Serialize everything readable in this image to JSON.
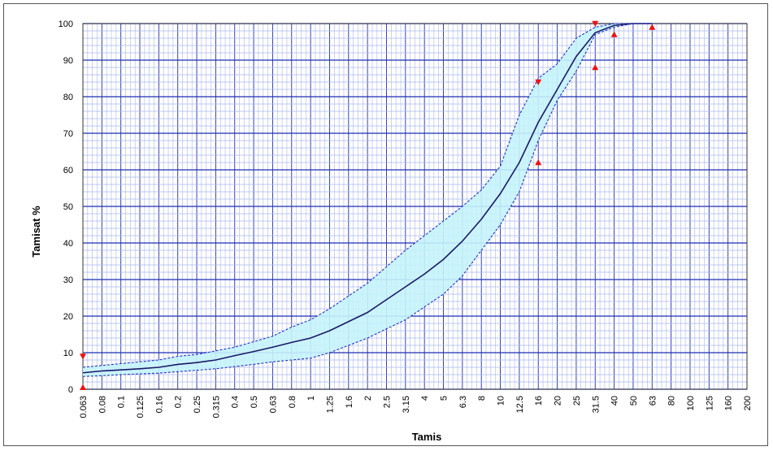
{
  "chart_data": {
    "type": "line",
    "title": "",
    "xlabel": "Tamis",
    "ylabel": "Tamisat %",
    "categories": [
      "0.063",
      "0.08",
      "0.1",
      "0.125",
      "0.16",
      "0.2",
      "0.25",
      "0.315",
      "0.4",
      "0.5",
      "0.63",
      "0.8",
      "1",
      "1.25",
      "1.6",
      "2",
      "2.5",
      "3.15",
      "4",
      "5",
      "6.3",
      "8",
      "10",
      "12.5",
      "16",
      "20",
      "25",
      "31.5",
      "40",
      "50",
      "63",
      "80",
      "100",
      "125",
      "160",
      "200"
    ],
    "ylim": [
      0,
      100
    ],
    "y_ticks": [
      0,
      10,
      20,
      30,
      40,
      50,
      60,
      70,
      80,
      90,
      100
    ],
    "grid": true,
    "band_color": "#c5f3fb",
    "band_line_color": "#2233cc",
    "major_grid_color": "#1e2fb0",
    "minor_grid_color": "#aab6ee",
    "curve_color": "#1a1a66",
    "marker_color": "#ee1111",
    "series": [
      {
        "role": "upper-limit",
        "values": [
          6.0,
          6.5,
          7.0,
          7.5,
          8.0,
          9.0,
          9.5,
          10.5,
          11.5,
          13.0,
          14.5,
          17.0,
          19.0,
          22.0,
          25.5,
          29.0,
          33.5,
          38.0,
          42.0,
          46.0,
          50.0,
          54.5,
          61.0,
          75.0,
          85.0,
          89.0,
          96.0,
          99.0,
          100.0,
          100.0,
          100.0,
          null,
          null,
          null,
          null,
          null
        ]
      },
      {
        "role": "median",
        "values": [
          4.5,
          5.0,
          5.3,
          5.6,
          6.0,
          6.8,
          7.3,
          8.0,
          9.2,
          10.3,
          11.5,
          12.8,
          14.0,
          16.0,
          18.5,
          21.0,
          24.5,
          28.0,
          31.5,
          35.5,
          40.5,
          46.5,
          53.5,
          62.0,
          73.0,
          82.0,
          91.0,
          97.5,
          99.5,
          100.0,
          100.0,
          null,
          null,
          null,
          null,
          null
        ]
      },
      {
        "role": "lower-limit",
        "values": [
          3.5,
          3.7,
          4.0,
          4.2,
          4.4,
          4.8,
          5.2,
          5.6,
          6.2,
          6.8,
          7.5,
          8.0,
          8.5,
          10.0,
          12.0,
          14.0,
          16.5,
          19.0,
          22.5,
          26.0,
          31.0,
          38.0,
          45.0,
          54.0,
          68.0,
          79.0,
          87.0,
          97.0,
          99.0,
          100.0,
          100.0,
          null,
          null,
          null,
          null,
          null
        ]
      }
    ],
    "markers": [
      {
        "category": "0.063",
        "y": 9,
        "shape": "down"
      },
      {
        "category": "0.063",
        "y": 0.5,
        "shape": "up"
      },
      {
        "category": "16",
        "y": 84,
        "shape": "down"
      },
      {
        "category": "16",
        "y": 62,
        "shape": "up"
      },
      {
        "category": "31.5",
        "y": 100,
        "shape": "down"
      },
      {
        "category": "31.5",
        "y": 88,
        "shape": "up"
      },
      {
        "category": "40",
        "y": 97,
        "shape": "up"
      },
      {
        "category": "63",
        "y": 99,
        "shape": "up"
      }
    ]
  }
}
